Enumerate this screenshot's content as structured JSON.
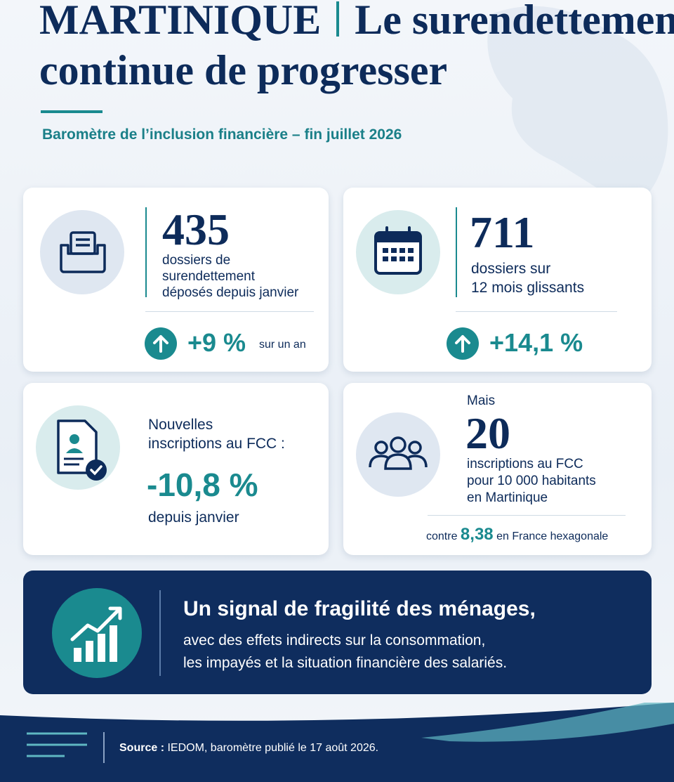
{
  "header": {
    "title_place": "MARTINIQUE",
    "title_lines": [
      "Le surendettement",
      "continue de progresser"
    ],
    "subtitle": "Baromètre de l’inclusion financière – fin juillet 2026"
  },
  "cards": [
    {
      "number": "435",
      "description": [
        "dossiers de",
        "surendettement",
        "déposés depuis janvier"
      ],
      "change": "+9 %",
      "change_note": "sur un an"
    },
    {
      "number": "711",
      "description": [
        "dossiers sur",
        "12 mois glissants"
      ],
      "change": "+14,1 %"
    },
    {
      "description": [
        "Nouvelles",
        "inscriptions au FCC :"
      ],
      "change": "-10,8 %",
      "change_note": "depuis janvier"
    },
    {
      "intro": "Mais",
      "number": "20",
      "description": [
        "inscriptions au FCC",
        "pour 10 000 habitants",
        "en Martinique"
      ],
      "comparison": {
        "before": "contre",
        "value": "8,38",
        "after": "en France hexagonale"
      }
    }
  ],
  "banner": {
    "headline": "Un signal de fragilité des ménages,",
    "lines": [
      "avec des effets indirects sur la consommation,",
      "les impayés et la situation financière des salariés."
    ]
  },
  "footer": {
    "source_label": "Source :",
    "source_text": "IEDOM, baromètre publié le 17 août 2026."
  }
}
